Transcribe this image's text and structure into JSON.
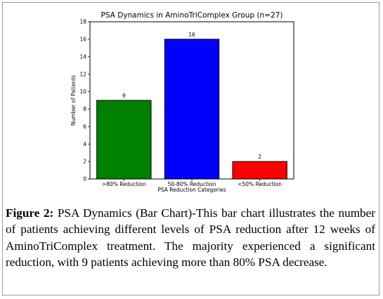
{
  "chart_data": {
    "type": "bar",
    "title": "PSA Dynamics in AminoTriComplex Group (n=27)",
    "xlabel": "PSA Reduction Categories",
    "ylabel": "Number of Patients",
    "categories": [
      ">80% Reduction",
      "50-80% Reduction",
      "<50% Reduction"
    ],
    "values": [
      9,
      16,
      2
    ],
    "bar_colors": [
      "#008000",
      "#0000ff",
      "#ff0000"
    ],
    "ylim": [
      0,
      18
    ],
    "yticks": [
      "0",
      "2",
      "4",
      "6",
      "8",
      "10",
      "12",
      "14",
      "16",
      "18"
    ],
    "grid": false,
    "data_labels": [
      "9",
      "16",
      "2"
    ]
  },
  "caption": {
    "label": "Figure 2:",
    "text": "PSA Dynamics (Bar Chart)-This bar chart illustrates the number of patients achieving different levels of PSA reduction after 12 weeks of AminoTriComplex treatment. The majority experienced a significant reduction, with 9 patients achieving more than 80% PSA decrease."
  }
}
